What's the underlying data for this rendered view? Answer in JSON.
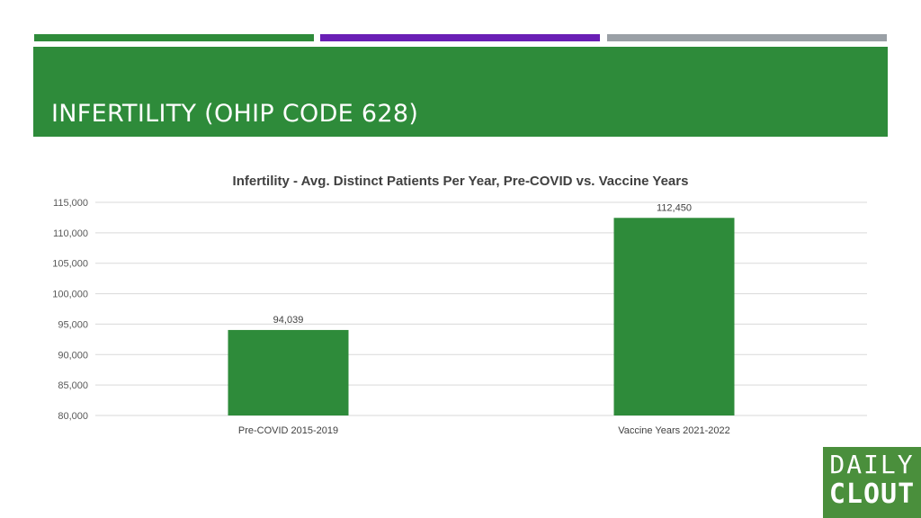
{
  "slide": {
    "title": "INFERTILITY (OHIP CODE 628)",
    "accent_colors": [
      "#2e8b3a",
      "#6a1fb5",
      "#9aa0a6"
    ],
    "band_color": "#2e8b3a"
  },
  "logo": {
    "line1": "DAILY",
    "line2": "CLOUT",
    "color": "#4a8f3c"
  },
  "chart_data": {
    "type": "bar",
    "title": "Infertility - Avg. Distinct Patients Per Year, Pre-COVID vs. Vaccine Years",
    "xlabel": "",
    "ylabel": "",
    "categories": [
      "Pre-COVID 2015-2019",
      "Vaccine Years 2021-2022"
    ],
    "values": [
      94039,
      112450
    ],
    "value_labels": [
      "94,039",
      "112,450"
    ],
    "ylim": [
      80000,
      115000
    ],
    "yticks": [
      80000,
      85000,
      90000,
      95000,
      100000,
      105000,
      110000,
      115000
    ],
    "ytick_labels": [
      "80,000",
      "85,000",
      "90,000",
      "95,000",
      "100,000",
      "105,000",
      "110,000",
      "115,000"
    ],
    "bar_color": "#2e8b3a",
    "grid": true,
    "legend": "none"
  }
}
